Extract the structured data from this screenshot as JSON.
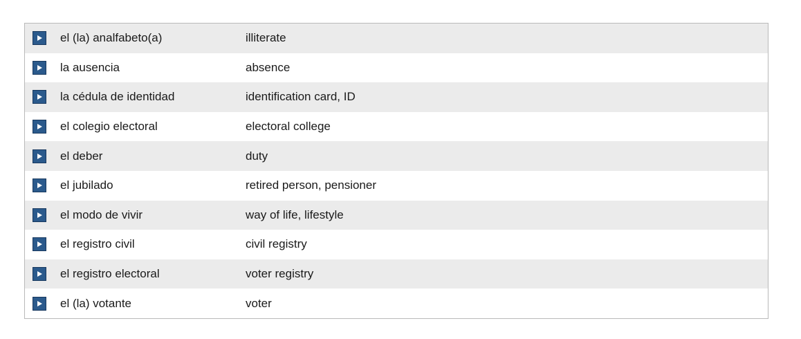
{
  "vocabulary": {
    "rows": [
      {
        "spanish": "el (la) analfabeto(a)",
        "english": "illiterate"
      },
      {
        "spanish": "la ausencia",
        "english": "absence"
      },
      {
        "spanish": "la cédula de identidad",
        "english": "identification card, ID"
      },
      {
        "spanish": "el colegio electoral",
        "english": "electoral college"
      },
      {
        "spanish": "el deber",
        "english": "duty"
      },
      {
        "spanish": "el jubilado",
        "english": "retired person, pensioner"
      },
      {
        "spanish": "el modo de vivir",
        "english": "way of life, lifestyle"
      },
      {
        "spanish": "el registro civil",
        "english": "civil registry"
      },
      {
        "spanish": "el registro electoral",
        "english": "voter registry"
      },
      {
        "spanish": "el (la) votante",
        "english": "voter"
      }
    ]
  },
  "colors": {
    "play_button": "#2b5a8c",
    "row_alt": "#ebebeb",
    "border": "#b9b9b9"
  },
  "icons": {
    "play": "play-icon"
  }
}
